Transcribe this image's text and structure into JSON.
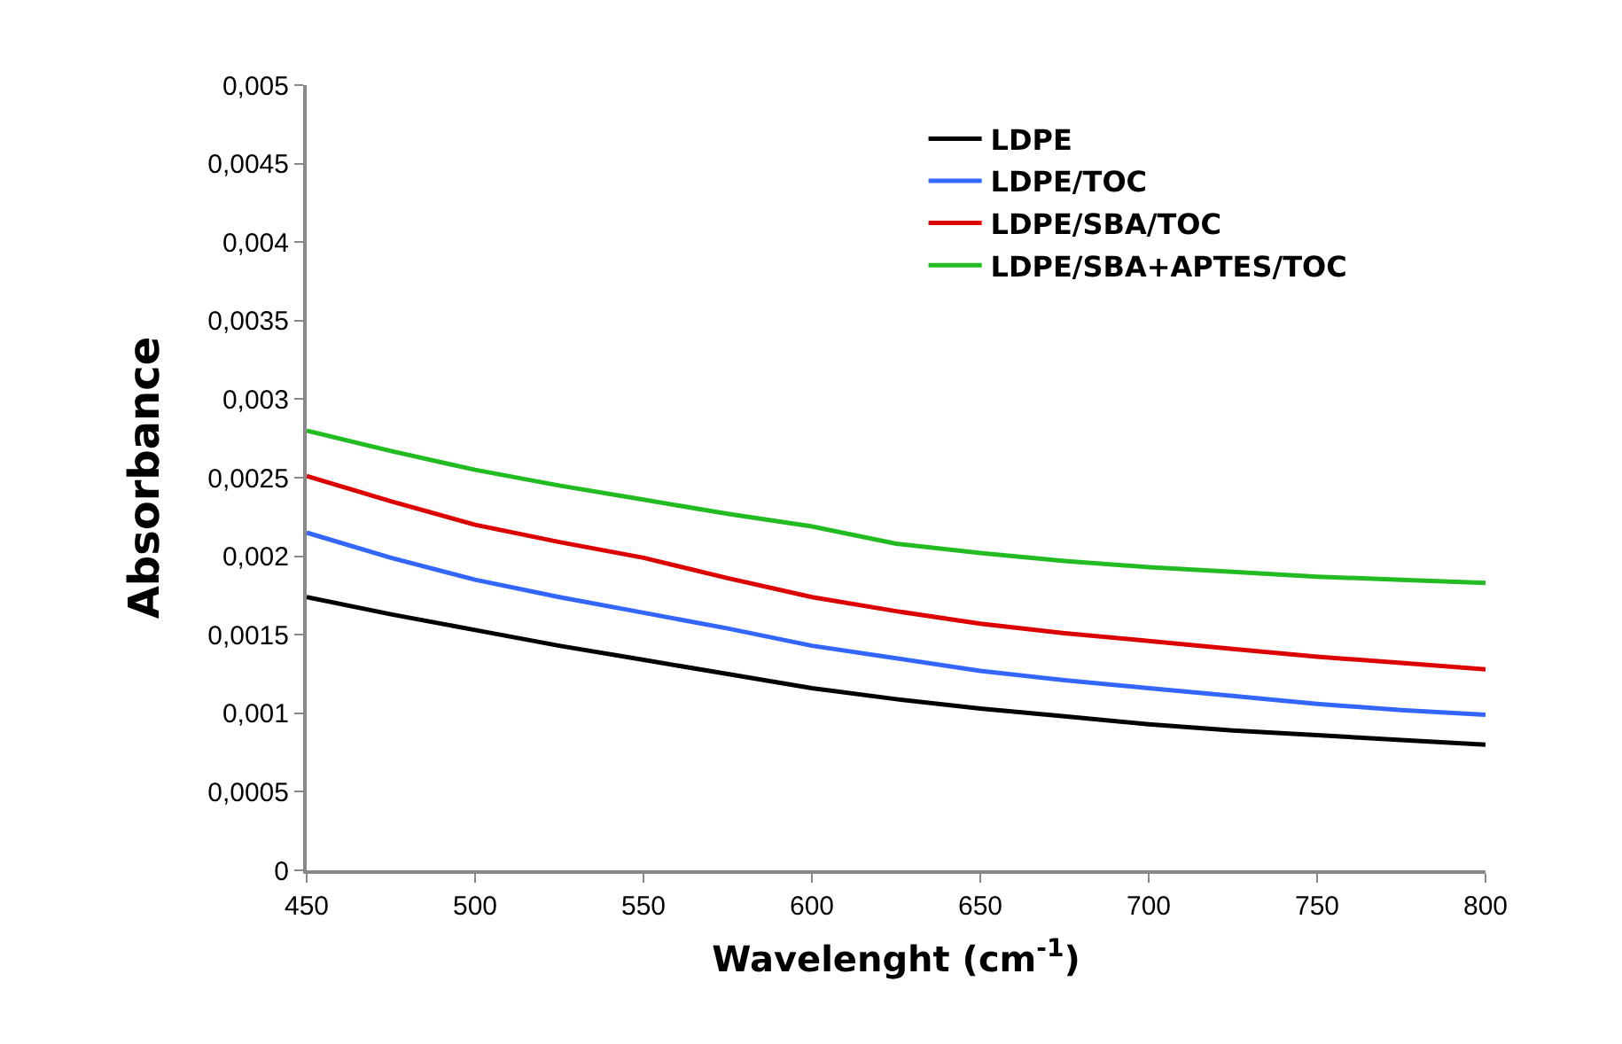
{
  "chart_data": {
    "type": "line",
    "xlabel": "Wavelenght (cm$^{-1}$)",
    "ylabel": "Absorbance",
    "x": [
      450,
      475,
      500,
      525,
      550,
      575,
      600,
      625,
      650,
      675,
      700,
      725,
      750,
      775,
      800
    ],
    "series": [
      {
        "name": "LDPE",
        "color": "#000000",
        "values": [
          0.00174,
          0.00163,
          0.00153,
          0.00143,
          0.00134,
          0.00125,
          0.00116,
          0.00109,
          0.00103,
          0.00098,
          0.00093,
          0.00089,
          0.00086,
          0.00083,
          0.0008
        ]
      },
      {
        "name": "LDPE/TOC",
        "color": "#3366ff",
        "values": [
          0.00215,
          0.00199,
          0.00185,
          0.00174,
          0.00164,
          0.00154,
          0.00143,
          0.00135,
          0.00127,
          0.00121,
          0.00116,
          0.00111,
          0.00106,
          0.00102,
          0.00099
        ]
      },
      {
        "name": "LDPE/SBA/TOC",
        "color": "#dd0000",
        "values": [
          0.00251,
          0.00235,
          0.0022,
          0.00209,
          0.00199,
          0.00186,
          0.00174,
          0.00165,
          0.00157,
          0.00151,
          0.00146,
          0.00141,
          0.00136,
          0.00132,
          0.00128
        ]
      },
      {
        "name": "LDPE/SBA+APTES/TOC",
        "color": "#22bb22",
        "values": [
          0.0028,
          0.00267,
          0.00255,
          0.00245,
          0.00236,
          0.00227,
          0.00219,
          0.00208,
          0.00202,
          0.00197,
          0.00193,
          0.0019,
          0.00187,
          0.00185,
          0.00183
        ]
      }
    ],
    "xlim": [
      450,
      800
    ],
    "xticks": [
      450,
      500,
      550,
      600,
      650,
      700,
      750,
      800
    ],
    "ylim": [
      0,
      0.005
    ],
    "yticks": [
      0,
      {
        "value": 0.0005,
        "label": "0,0005"
      },
      {
        "value": 0.001,
        "label": "0,001"
      },
      {
        "value": 0.0015,
        "label": "0,0015"
      },
      {
        "value": 0.002,
        "label": "0,002"
      },
      {
        "value": 0.0025,
        "label": "0,0025"
      },
      {
        "value": 0.003,
        "label": "0,003"
      },
      {
        "value": 0.0035,
        "label": "0,0035"
      },
      {
        "value": 0.004,
        "label": "0,004"
      },
      {
        "value": 0.0045,
        "label": "0,0045"
      },
      {
        "value": 0.005,
        "label": "0,005"
      }
    ],
    "legend": "top right",
    "marker": "none",
    "line_style": "solid"
  }
}
